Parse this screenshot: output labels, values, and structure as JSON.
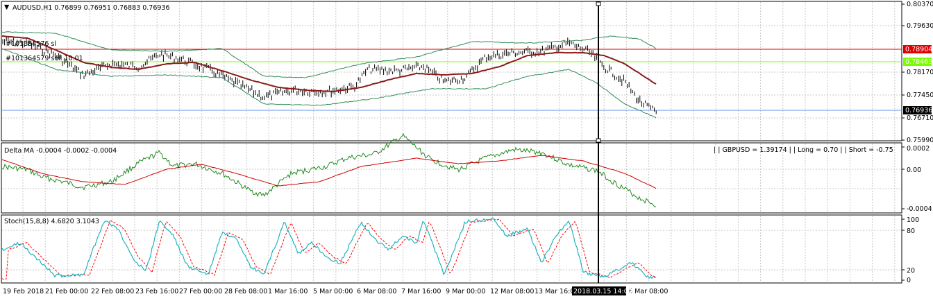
{
  "window": {
    "symbol_header": "AUDUSD,H1  0.76899 0.76951 0.76883 0.76936",
    "menu_arrow": "down-triangle"
  },
  "main_chart": {
    "price_axis_labels": [
      "0.80370",
      "0.79630",
      "0.78904",
      "0.78463",
      "0.78170",
      "0.77450",
      "0.76936",
      "0.76710",
      "0.75990"
    ],
    "order_labels": [
      "#101384576 sl",
      "#101364579 sell 10.01"
    ],
    "resistance_label": "0.78904",
    "support_label": "0.78463",
    "current_price_label": "0.76936",
    "colors": {
      "bars": "#000000",
      "ma": "#8b1a1a",
      "bands": "#2e8b57",
      "resistance": "#e00000",
      "support": "#7cfc00",
      "current": "#6495ed"
    }
  },
  "delta_panel": {
    "header": "Delta MA -0.0004 -0.0002 -0.0004",
    "info": "| | GBPUSD = 1.39174  | | Long = 0.70  | |  Short = -0.75",
    "axis_labels": [
      "0.0002",
      "0.00",
      "-0.0004"
    ],
    "colors": {
      "fast": "#228b22",
      "slow": "#cc0000"
    }
  },
  "stoch_panel": {
    "header": "Stoch(15,8,8) 4.6820 3.1043",
    "axis_labels": [
      "100",
      "80",
      "20",
      "0"
    ],
    "colors": {
      "main": "#20b2c0",
      "signal": "#ff0000"
    }
  },
  "time_axis": {
    "labels": [
      "19 Feb 2018",
      "21 Feb 00:00",
      "22 Feb 08:00",
      "23 Feb 16:00",
      "27 Feb 00:00",
      "28 Feb 08:00",
      "1 Mar 16:00",
      "5 Mar 00:00",
      "6 Mar 08:00",
      "7 Mar 16:00",
      "9 Mar 00:00",
      "12 Mar 08:00",
      "13 Mar 16:00",
      "6 Mar 08:00"
    ],
    "crosshair_label": "2018.03.15 14:00"
  }
}
